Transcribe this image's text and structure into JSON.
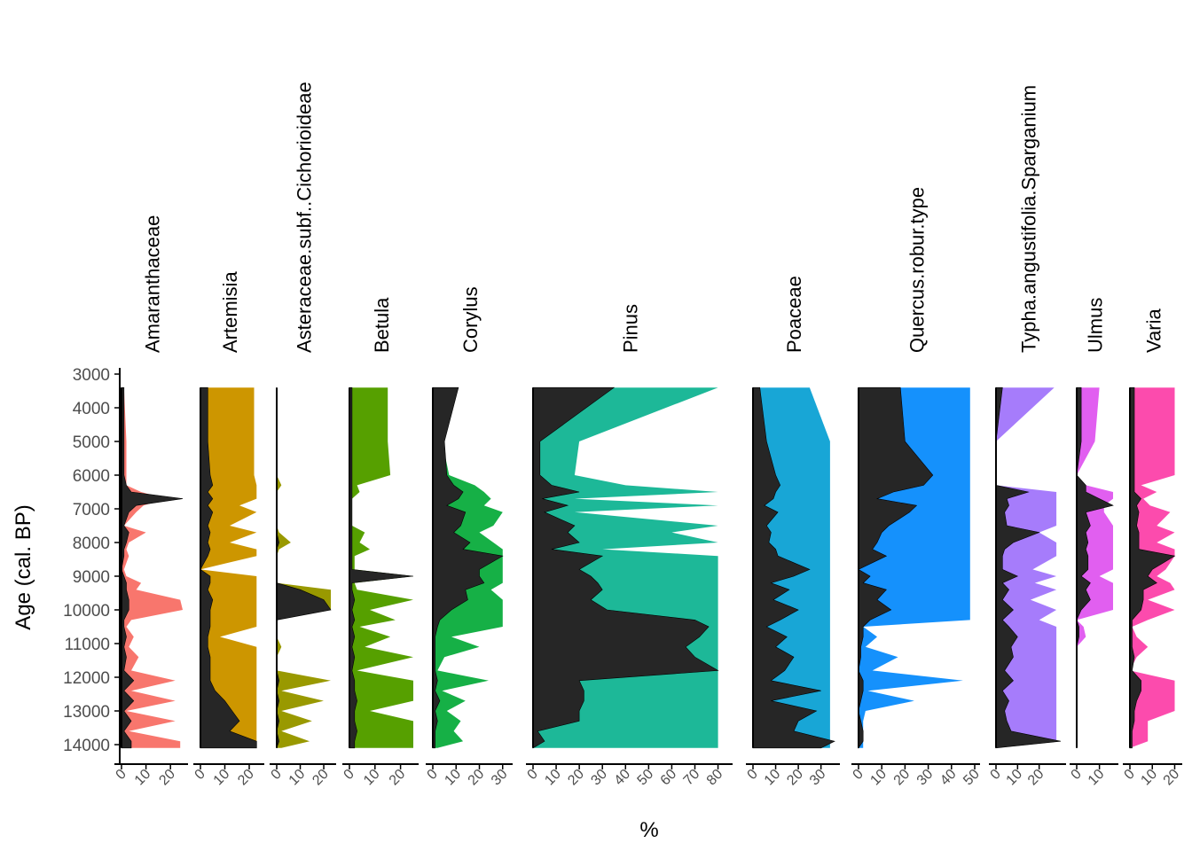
{
  "chart_data": {
    "type": "area",
    "ylabel": "Age (cal. BP)",
    "xlabel": "%",
    "ylim": [
      3000,
      14000
    ],
    "yticks": [
      "3000",
      "4000",
      "5000",
      "6000",
      "7000",
      "8000",
      "9000",
      "10000",
      "11000",
      "12000",
      "13000",
      "14000"
    ],
    "ages": [
      3400,
      5000,
      6000,
      6300,
      6500,
      6700,
      6900,
      7100,
      7500,
      7700,
      8000,
      8200,
      8400,
      8800,
      9000,
      9200,
      9400,
      9700,
      10000,
      10300,
      10500,
      10800,
      11100,
      11400,
      11800,
      12100,
      12400,
      12700,
      13000,
      13300,
      13600,
      13900,
      14100
    ],
    "taxa": [
      {
        "name": "Amaranthaceae",
        "color": "#F8766D",
        "xmax": 25,
        "xticks": [
          "0",
          "10",
          "20"
        ],
        "values": [
          1,
          2,
          2,
          2,
          8,
          18,
          9,
          6,
          1,
          10,
          3,
          2,
          3,
          1,
          2,
          8,
          6,
          24,
          25,
          4,
          2,
          5,
          3,
          7,
          4,
          22,
          4,
          22,
          2,
          22,
          3,
          24,
          24
        ],
        "exag": [
          1,
          1,
          1,
          2,
          4,
          25,
          6,
          3,
          1,
          3,
          2,
          1,
          1,
          0,
          1,
          2,
          2,
          3,
          3,
          1,
          1,
          2,
          1,
          2,
          1,
          5,
          1,
          5,
          1,
          4,
          1,
          4,
          4
        ]
      },
      {
        "name": "Artemisia",
        "color": "#CD9600",
        "xmax": 24,
        "xticks": [
          "0",
          "10",
          "20"
        ],
        "values": [
          22,
          22,
          22,
          23,
          23,
          23,
          16,
          23,
          12,
          23,
          12,
          23,
          23,
          0,
          23,
          23,
          23,
          23,
          23,
          23,
          23,
          8,
          23,
          23,
          23,
          23,
          23,
          23,
          23,
          23,
          23,
          23,
          23
        ],
        "exag": [
          3,
          3,
          4,
          5,
          3,
          5,
          3,
          5,
          3,
          4,
          3,
          4,
          3,
          0,
          4,
          4,
          3,
          5,
          4,
          4,
          4,
          3,
          3,
          4,
          4,
          4,
          6,
          10,
          13,
          16,
          12,
          23,
          23
        ]
      },
      {
        "name": "Asteraceae.subf..Cichorioideae",
        "color": "#999900",
        "xmax": 23,
        "xticks": [
          "0",
          "10",
          "20"
        ],
        "values": [
          0,
          0,
          0,
          2,
          0,
          0,
          0,
          0,
          0,
          1,
          6,
          1,
          0,
          0,
          0,
          0,
          23,
          23,
          23,
          0,
          0,
          0,
          2,
          0,
          0,
          23,
          2,
          20,
          2,
          15,
          2,
          14,
          2
        ],
        "exag": [
          0,
          0,
          0,
          0,
          0,
          0,
          0,
          0,
          0,
          0,
          1,
          0,
          0,
          0,
          0,
          0,
          10,
          20,
          23,
          0,
          0,
          0,
          0,
          0,
          0,
          1,
          0,
          1,
          0,
          1,
          0,
          1,
          0
        ]
      },
      {
        "name": "Betula",
        "color": "#56A000",
        "xmax": 25,
        "xticks": [
          "0",
          "10",
          "20"
        ],
        "values": [
          15,
          15,
          16,
          3,
          4,
          1,
          1,
          1,
          1,
          6,
          4,
          8,
          2,
          2,
          25,
          2,
          3,
          25,
          8,
          18,
          4,
          16,
          6,
          25,
          3,
          25,
          25,
          25,
          8,
          25,
          25,
          25,
          25
        ],
        "exag": [
          1,
          1,
          1,
          1,
          1,
          1,
          1,
          1,
          1,
          1,
          1,
          1,
          1,
          1,
          25,
          1,
          1,
          2,
          1,
          2,
          1,
          2,
          1,
          2,
          1,
          2,
          2,
          3,
          2,
          2,
          3,
          2,
          2
        ]
      },
      {
        "name": "Corylus",
        "color": "#16B046",
        "xmax": 32,
        "xticks": [
          "0",
          "10",
          "20",
          "30"
        ],
        "values": [
          11,
          4,
          7,
          18,
          22,
          25,
          22,
          30,
          26,
          20,
          26,
          30,
          30,
          30,
          30,
          30,
          25,
          30,
          30,
          30,
          30,
          8,
          20,
          5,
          2,
          24,
          4,
          14,
          6,
          12,
          9,
          13,
          2
        ],
        "exag": [
          11,
          5,
          6,
          9,
          13,
          11,
          6,
          14,
          12,
          9,
          16,
          13,
          30,
          20,
          20,
          22,
          14,
          15,
          8,
          3,
          2,
          1,
          1,
          1,
          1,
          2,
          1,
          3,
          1,
          2,
          1,
          1,
          1
        ]
      },
      {
        "name": "Pinus",
        "color": "#1DB898",
        "xmax": 84,
        "xticks": [
          "0",
          "10",
          "20",
          "30",
          "40",
          "50",
          "60",
          "70",
          "80"
        ],
        "values": [
          80,
          20,
          18,
          40,
          80,
          18,
          80,
          18,
          80,
          60,
          80,
          30,
          80,
          80,
          80,
          80,
          80,
          80,
          80,
          80,
          80,
          80,
          80,
          80,
          80,
          80,
          80,
          80,
          80,
          80,
          80,
          80,
          80
        ],
        "exag": [
          35,
          3,
          3,
          8,
          20,
          4,
          15,
          5,
          18,
          15,
          20,
          8,
          30,
          20,
          25,
          28,
          30,
          25,
          32,
          70,
          76,
          72,
          66,
          70,
          80,
          20,
          22,
          22,
          20,
          20,
          2,
          5,
          0
        ]
      },
      {
        "name": "Poaceae",
        "color": "#18A6D6",
        "xmax": 36,
        "xticks": [
          "0",
          "10",
          "20",
          "30"
        ],
        "values": [
          25,
          34,
          34,
          34,
          34,
          34,
          34,
          34,
          34,
          34,
          34,
          34,
          34,
          34,
          34,
          34,
          34,
          34,
          34,
          34,
          34,
          34,
          34,
          34,
          34,
          34,
          34,
          34,
          34,
          34,
          34,
          34,
          34
        ],
        "exag": [
          3,
          6,
          10,
          12,
          10,
          9,
          5,
          11,
          6,
          8,
          7,
          10,
          11,
          25,
          18,
          8,
          16,
          9,
          20,
          12,
          6,
          15,
          10,
          18,
          14,
          8,
          30,
          8,
          28,
          20,
          18,
          36,
          30
        ]
      },
      {
        "name": "Quercus.robur.type",
        "color": "#1591FC",
        "xmax": 50,
        "xticks": [
          "0",
          "10",
          "20",
          "30",
          "40",
          "50"
        ],
        "values": [
          48,
          48,
          48,
          48,
          48,
          48,
          48,
          48,
          48,
          48,
          48,
          48,
          48,
          48,
          48,
          48,
          48,
          48,
          48,
          48,
          2,
          8,
          3,
          17,
          6,
          45,
          4,
          24,
          3,
          2,
          2,
          2,
          2
        ],
        "exag": [
          18,
          20,
          32,
          28,
          15,
          8,
          25,
          22,
          13,
          10,
          8,
          6,
          12,
          0,
          5,
          2,
          12,
          8,
          14,
          5,
          2,
          2,
          1,
          1,
          0,
          2,
          2,
          1,
          0,
          1,
          2,
          2,
          0
        ]
      },
      {
        "name": "Typha.angustifolia.Sparganium",
        "color": "#A67CFB",
        "xmax": 30,
        "xticks": [
          "0",
          "10",
          "20"
        ],
        "values": [
          27,
          0,
          0,
          0,
          28,
          28,
          28,
          28,
          28,
          20,
          28,
          28,
          28,
          17,
          28,
          18,
          28,
          16,
          28,
          20,
          28,
          28,
          28,
          28,
          28,
          28,
          28,
          28,
          28,
          28,
          28,
          28,
          0
        ],
        "exag": [
          3,
          0,
          0,
          0,
          15,
          5,
          6,
          4,
          5,
          20,
          8,
          4,
          3,
          3,
          10,
          3,
          6,
          3,
          8,
          3,
          6,
          10,
          7,
          8,
          4,
          8,
          3,
          6,
          4,
          5,
          7,
          30,
          0
        ],
        "notes": ""
      },
      {
        "name": "Ulmus",
        "color": "#E15FF0",
        "xmax": 16,
        "xticks": [
          "0",
          "10"
        ],
        "values": [
          10,
          8,
          0,
          4,
          16,
          16,
          12,
          12,
          16,
          16,
          16,
          16,
          16,
          16,
          10,
          16,
          16,
          16,
          16,
          0,
          3,
          4,
          0,
          0,
          0,
          0,
          0,
          0,
          0,
          0,
          0,
          0,
          0
        ],
        "exag": [
          2,
          2,
          0,
          4,
          4,
          10,
          16,
          4,
          6,
          4,
          5,
          4,
          5,
          5,
          2,
          6,
          4,
          6,
          2,
          0,
          1,
          1,
          0,
          0,
          0,
          0,
          0,
          0,
          0,
          0,
          0,
          0,
          0
        ]
      },
      {
        "name": "Varia",
        "color": "#FC4BAD",
        "xmax": 21,
        "xticks": [
          "0",
          "10",
          "20"
        ],
        "values": [
          20,
          20,
          20,
          5,
          12,
          6,
          9,
          18,
          12,
          20,
          12,
          20,
          20,
          16,
          12,
          18,
          20,
          8,
          20,
          8,
          1,
          3,
          8,
          3,
          0,
          20,
          20,
          20,
          20,
          8,
          8,
          8,
          0
        ],
        "exag": [
          2,
          2,
          2,
          2,
          2,
          5,
          3,
          4,
          3,
          4,
          4,
          4,
          20,
          10,
          8,
          12,
          6,
          6,
          5,
          1,
          1,
          1,
          1,
          2,
          1,
          5,
          5,
          3,
          2,
          2,
          1,
          1,
          1
        ]
      }
    ]
  }
}
